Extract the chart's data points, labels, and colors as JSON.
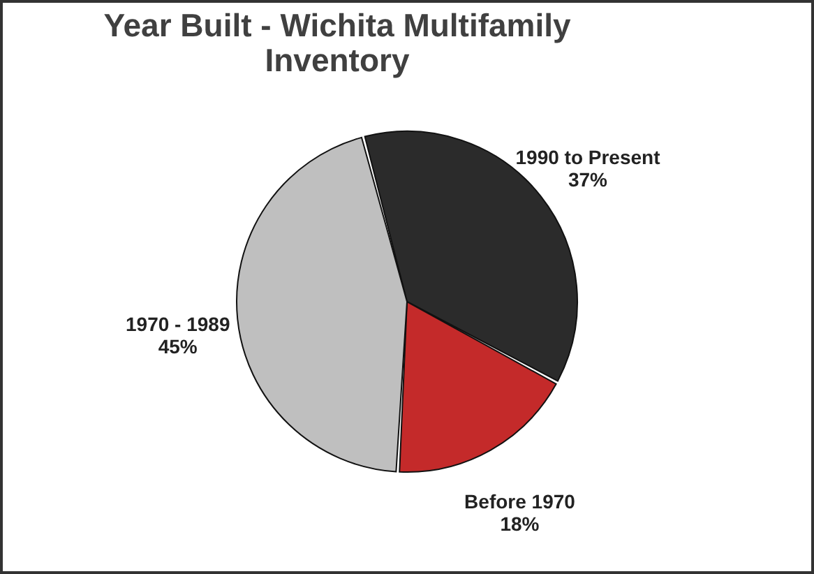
{
  "chart_data": {
    "type": "pie",
    "title": "Year Built - Wichita Multifamily Inventory",
    "categories": [
      "1990 to Present",
      "Before 1970",
      "1970 - 1989"
    ],
    "values": [
      37,
      18,
      45
    ],
    "colors": [
      "#2b2b2b",
      "#c42a2a",
      "#bfbfbf"
    ],
    "value_labels": [
      "37%",
      "18%",
      "45%"
    ],
    "legend": false
  }
}
